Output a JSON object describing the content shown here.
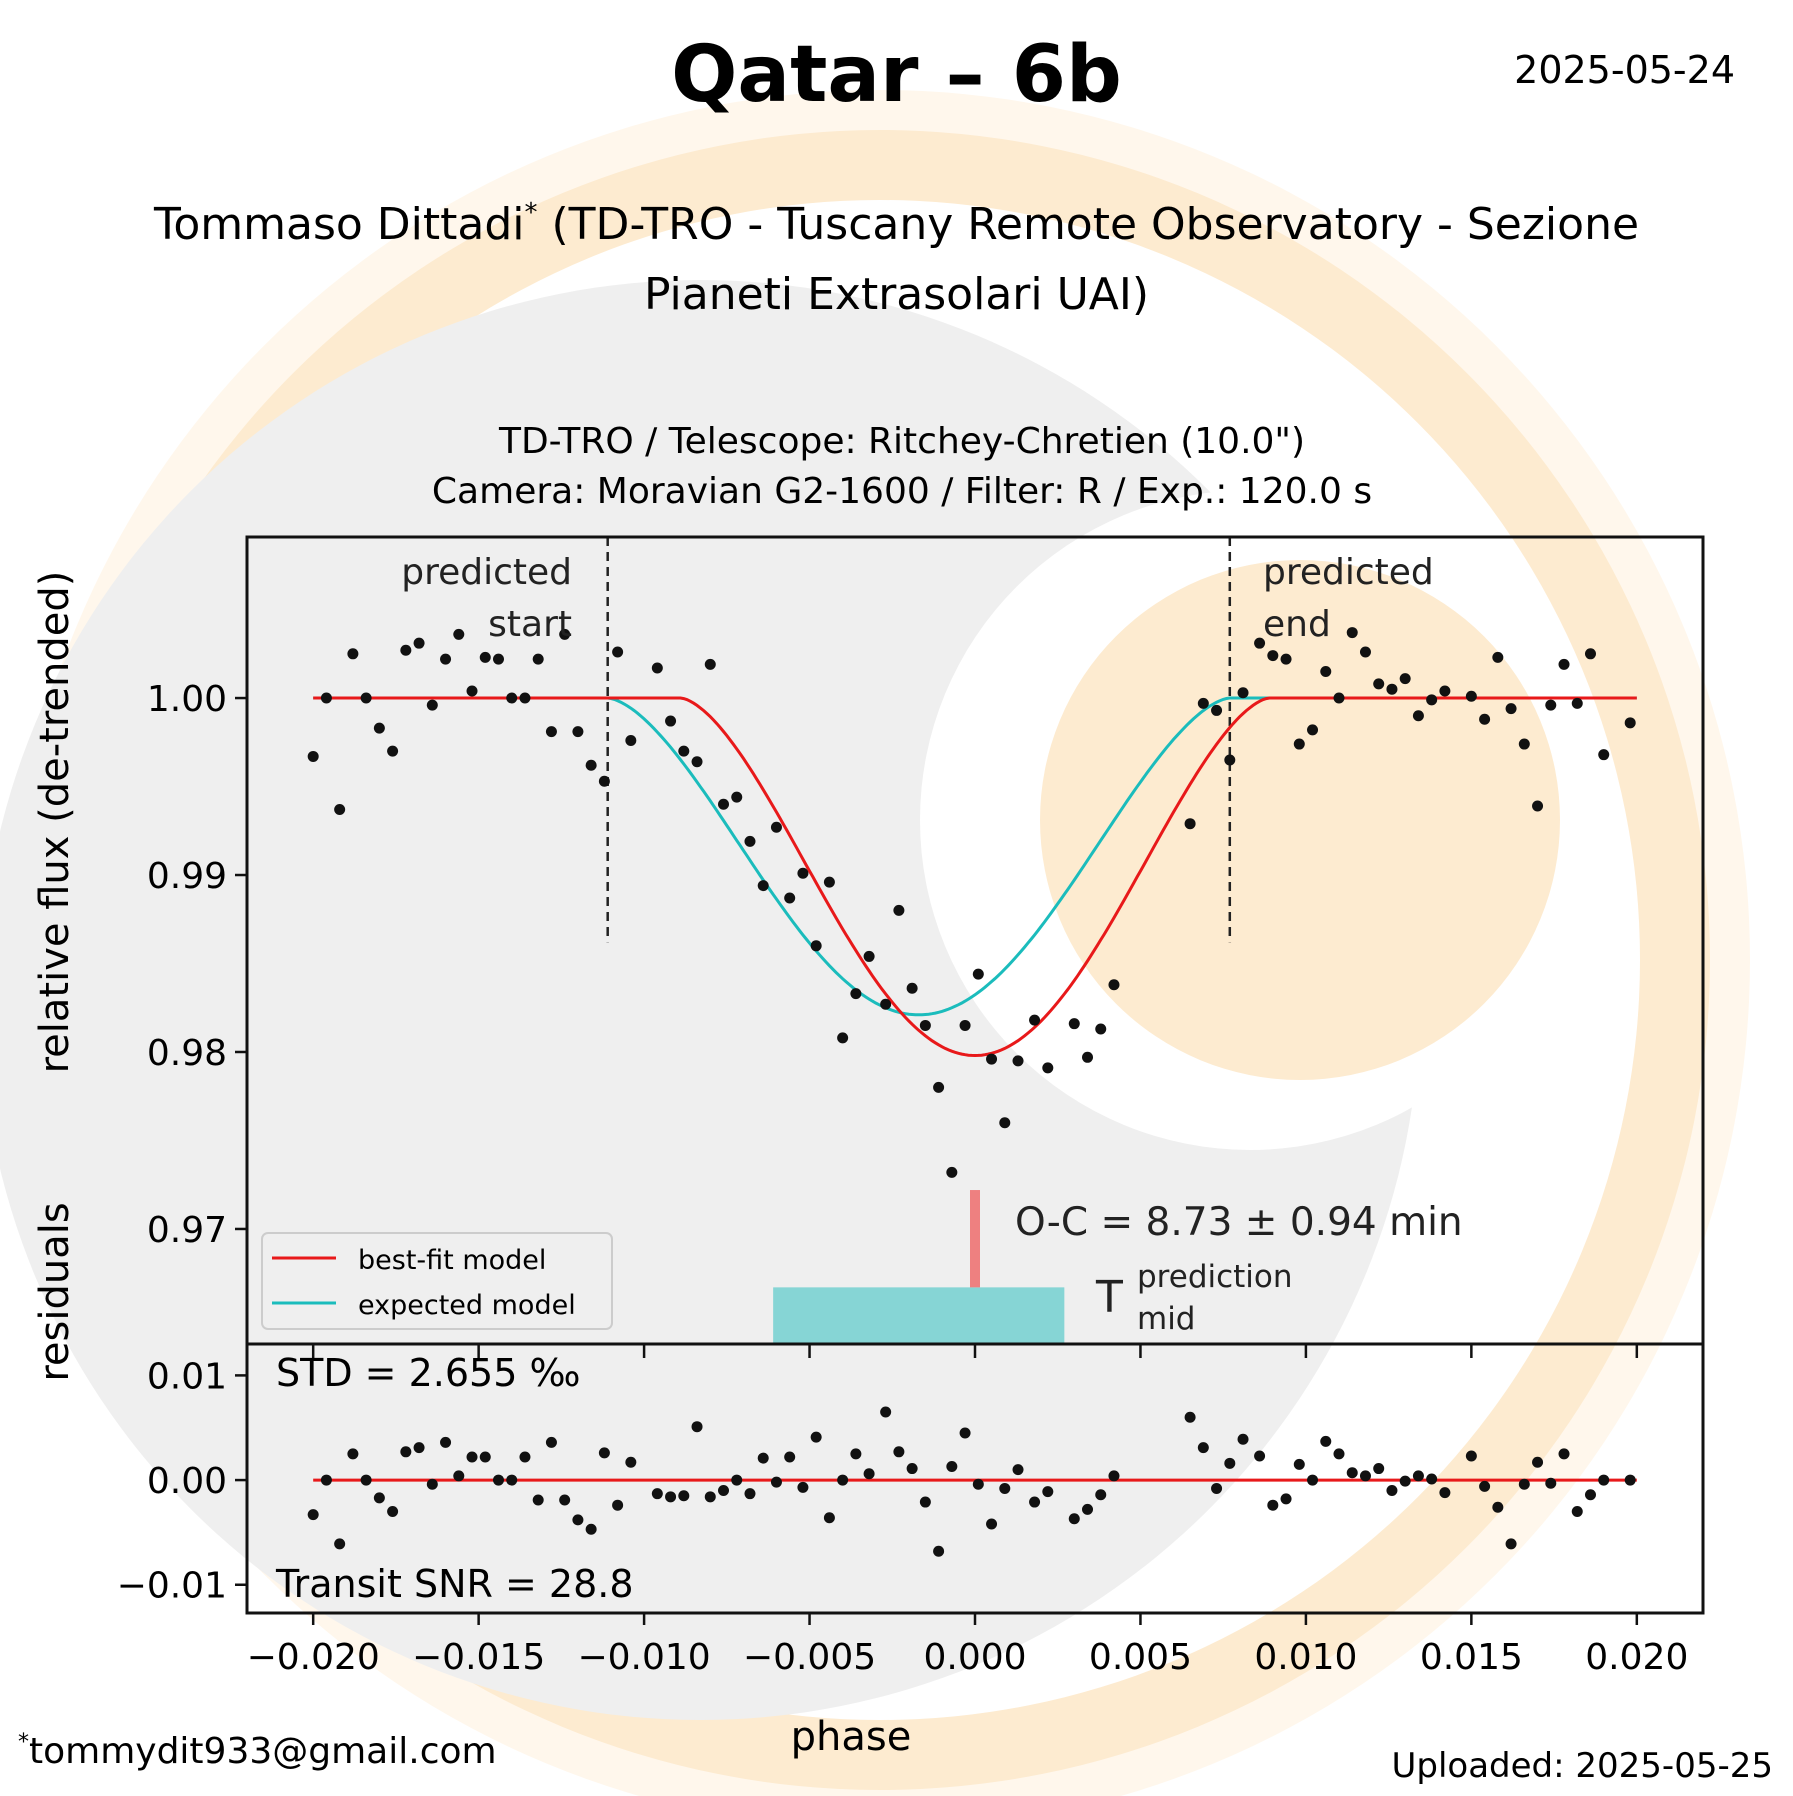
{
  "header": {
    "title": "Qatar – 6b",
    "date": "2025-05-24",
    "author_name": "Tommaso Dittadi",
    "author_mark": "*",
    "author_affiliation_line1": "(TD-TRO - Tuscany Remote Observatory - Sezione",
    "author_affiliation_line2": "Pianeti Extrasolari UAI)"
  },
  "footer": {
    "email_mark": "*",
    "email": "tommydit933@gmail.com",
    "uploaded": "Uploaded: 2025-05-25"
  },
  "colors": {
    "best_fit": "#e8191a",
    "expected": "#1bbcbc",
    "oc_bar": "#ee8080",
    "prediction_box": "#86d5d5",
    "points": "#111111",
    "panel_bg": "#efefef",
    "watermark_orange": "#fdebd0"
  },
  "chart_data": [
    {
      "type": "scatter",
      "panel": "main",
      "title_line1": "TD-TRO / Telescope: Ritchey-Chretien (10.0\")",
      "title_line2": "Camera: Moravian G2-1600 / Filter: R / Exp.: 120.0 s",
      "xlabel": "phase",
      "ylabel": "relative flux (de-trended)",
      "xlim": [
        -0.022,
        0.022
      ],
      "ylim": [
        0.9635,
        1.0091
      ],
      "xticks": [
        -0.02,
        -0.015,
        -0.01,
        -0.005,
        0.0,
        0.005,
        0.01,
        0.015,
        0.02
      ],
      "xtick_labels": [
        "−0.020",
        "−0.015",
        "−0.010",
        "−0.005",
        "0.000",
        "0.005",
        "0.010",
        "0.015",
        "0.020"
      ],
      "yticks": [
        0.97,
        0.98,
        0.99,
        1.0
      ],
      "ytick_labels": [
        "0.97",
        "0.98",
        "0.99",
        "1.00"
      ],
      "legend": {
        "position": "lower-left",
        "entries": [
          "best-fit model",
          "expected model"
        ]
      },
      "annotations": {
        "predicted_start": {
          "x": -0.0111,
          "label_line1": "predicted",
          "label_line2": "start"
        },
        "predicted_end": {
          "x": 0.0077,
          "label_line1": "predicted",
          "label_line2": "end"
        },
        "oc_text": "O-C = 8.73 ± 0.94 min",
        "tmid_symbol": "T",
        "tmid_sup": "prediction",
        "tmid_sub": "mid",
        "prediction_box_x": [
          -0.0061,
          0.0027
        ],
        "oc_marker_x": 0.0
      },
      "models": {
        "best_fit": {
          "center": 0.0,
          "depth": 0.0202,
          "half_width": 0.0089
        },
        "expected": {
          "center": -0.0017,
          "depth": 0.0179,
          "half_width": 0.0094
        },
        "x_range": [
          -0.02,
          0.02
        ]
      },
      "points": {
        "x": [
          -0.02,
          -0.0196,
          -0.0192,
          -0.0188,
          -0.0184,
          -0.018,
          -0.0176,
          -0.0172,
          -0.0168,
          -0.0164,
          -0.016,
          -0.0156,
          -0.0152,
          -0.0148,
          -0.0144,
          -0.014,
          -0.0136,
          -0.0132,
          -0.0128,
          -0.0124,
          -0.012,
          -0.0116,
          -0.0112,
          -0.0108,
          -0.0104,
          -0.0096,
          -0.0092,
          -0.0088,
          -0.0084,
          -0.008,
          -0.0076,
          -0.0072,
          -0.0068,
          -0.0064,
          -0.006,
          -0.0056,
          -0.0052,
          -0.0048,
          -0.0044,
          -0.004,
          -0.0036,
          -0.0032,
          -0.0027,
          -0.0023,
          -0.0019,
          -0.0015,
          -0.0011,
          -0.0007,
          -0.0003,
          0.0001,
          0.0005,
          0.0009,
          0.0013,
          0.0018,
          0.0022,
          0.003,
          0.0034,
          0.0038,
          0.0042,
          0.0065,
          0.0069,
          0.0073,
          0.0077,
          0.0081,
          0.0086,
          0.009,
          0.0094,
          0.0098,
          0.0102,
          0.0106,
          0.011,
          0.0114,
          0.0118,
          0.0122,
          0.0126,
          0.013,
          0.0134,
          0.0138,
          0.0142,
          0.015,
          0.0154,
          0.0158,
          0.0162,
          0.0166,
          0.017,
          0.0174,
          0.0178,
          0.0182,
          0.0186,
          0.019,
          0.0198
        ],
        "y": [
          0.9967,
          1.0,
          0.9937,
          1.0025,
          1.0,
          0.9983,
          0.997,
          1.0027,
          1.0031,
          0.9996,
          1.0022,
          1.0036,
          1.0004,
          1.0023,
          1.0022,
          1.0,
          1.0,
          1.0022,
          0.9981,
          1.0036,
          0.9981,
          0.9962,
          0.9953,
          1.0026,
          0.9976,
          1.0017,
          0.9987,
          0.997,
          0.9964,
          1.0019,
          0.994,
          0.9944,
          0.9919,
          0.9894,
          0.9927,
          0.9887,
          0.9901,
          0.986,
          0.9896,
          0.9808,
          0.9833,
          0.9854,
          0.9827,
          0.988,
          0.9836,
          0.9815,
          0.978,
          0.9732,
          0.9815,
          0.9844,
          0.9796,
          0.976,
          0.9795,
          0.9818,
          0.9791,
          0.9816,
          0.9797,
          0.9813,
          0.9838,
          0.9929,
          0.9997,
          0.9993,
          0.9965,
          1.0003,
          1.0031,
          1.0024,
          1.0022,
          0.9974,
          0.9982,
          1.0015,
          1.0,
          1.0037,
          1.0026,
          1.0008,
          1.0005,
          1.0011,
          0.999,
          0.9999,
          1.0004,
          1.0001,
          0.9988,
          1.0023,
          0.9994,
          0.9974,
          0.9939,
          0.9996,
          1.0019,
          0.9997,
          1.0025,
          0.9968,
          0.9986
        ]
      }
    },
    {
      "type": "scatter",
      "panel": "residuals",
      "xlabel": "phase",
      "ylabel": "residuals",
      "xlim": [
        -0.022,
        0.022
      ],
      "ylim": [
        -0.0127,
        0.013
      ],
      "yticks": [
        -0.01,
        0.0,
        0.01
      ],
      "ytick_labels": [
        "−0.01",
        "0.00",
        "0.01"
      ],
      "std_text": "STD = 2.655 ‰",
      "snr_text": "Transit SNR = 28.8",
      "zero_line": 0.0,
      "points": {
        "x": [
          -0.02,
          -0.0196,
          -0.0192,
          -0.0188,
          -0.0184,
          -0.018,
          -0.0176,
          -0.0172,
          -0.0168,
          -0.0164,
          -0.016,
          -0.0156,
          -0.0152,
          -0.0148,
          -0.0144,
          -0.014,
          -0.0136,
          -0.0132,
          -0.0128,
          -0.0124,
          -0.012,
          -0.0116,
          -0.0112,
          -0.0108,
          -0.0104,
          -0.0096,
          -0.0092,
          -0.0088,
          -0.0084,
          -0.008,
          -0.0076,
          -0.0072,
          -0.0068,
          -0.0064,
          -0.006,
          -0.0056,
          -0.0052,
          -0.0048,
          -0.0044,
          -0.004,
          -0.0036,
          -0.0032,
          -0.0027,
          -0.0023,
          -0.0019,
          -0.0015,
          -0.0011,
          -0.0007,
          -0.0003,
          0.0001,
          0.0005,
          0.0009,
          0.0013,
          0.0018,
          0.0022,
          0.003,
          0.0034,
          0.0038,
          0.0042,
          0.0065,
          0.0069,
          0.0073,
          0.0077,
          0.0081,
          0.0086,
          0.009,
          0.0094,
          0.0098,
          0.0102,
          0.0106,
          0.011,
          0.0114,
          0.0118,
          0.0122,
          0.0126,
          0.013,
          0.0134,
          0.0138,
          0.0142,
          0.015,
          0.0154,
          0.0158,
          0.0162,
          0.0166,
          0.017,
          0.0174,
          0.0178,
          0.0182,
          0.0186,
          0.019,
          0.0198
        ],
        "y": [
          -0.0033,
          0.0,
          -0.0061,
          0.0025,
          0.0,
          -0.0017,
          -0.003,
          0.0027,
          0.0031,
          -0.0004,
          0.0036,
          0.0004,
          0.0022,
          0.0022,
          0.0,
          0.0,
          0.0022,
          -0.0019,
          0.0036,
          -0.0019,
          -0.0038,
          -0.0047,
          0.0026,
          -0.0024,
          0.0017,
          -0.0013,
          -0.0016,
          -0.0015,
          0.0051,
          -0.0016,
          -0.001,
          0.0,
          -0.0013,
          0.0021,
          -0.0002,
          0.0022,
          -0.0007,
          0.0041,
          -0.0036,
          0.0,
          0.0025,
          0.0006,
          0.0065,
          0.0027,
          0.0011,
          -0.0021,
          -0.0068,
          0.0013,
          0.0045,
          -0.0004,
          -0.0042,
          -0.0008,
          0.001,
          -0.0021,
          -0.0011,
          -0.0037,
          -0.0028,
          -0.0014,
          0.0004,
          0.006,
          0.0031,
          -0.0008,
          0.0016,
          0.0039,
          0.0023,
          -0.0024,
          -0.0018,
          0.0015,
          0.0,
          0.0037,
          0.0025,
          0.0007,
          0.0004,
          0.0011,
          -0.001,
          -0.0001,
          0.0004,
          0.0001,
          -0.0012,
          0.0023,
          -0.0006,
          -0.0026,
          -0.0061,
          -0.0004,
          0.0017,
          -0.0003,
          0.0025,
          -0.003,
          -0.0014,
          0.0,
          0.0
        ]
      }
    }
  ]
}
